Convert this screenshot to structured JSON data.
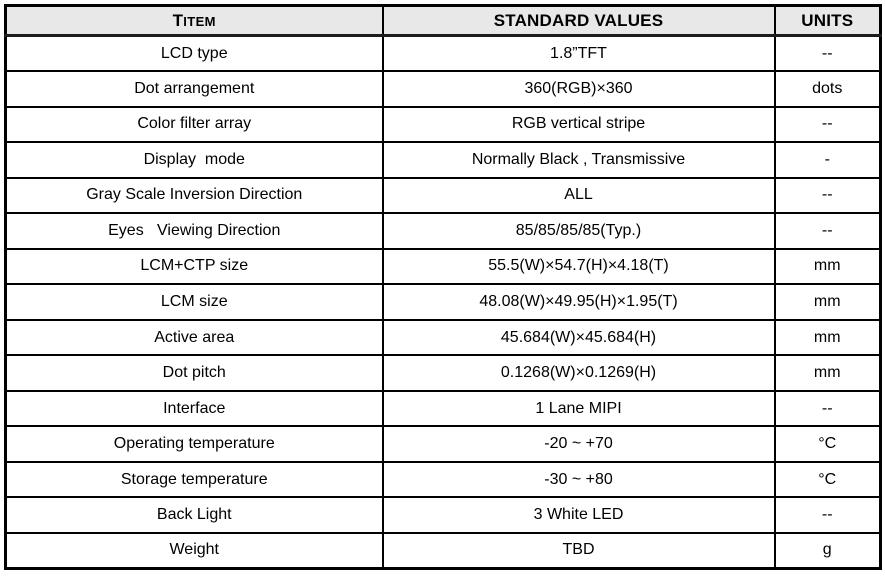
{
  "table": {
    "header": {
      "item_initial": "T",
      "item_rest": "ITEM",
      "standard_values": "STANDARD VALUES",
      "units": "UNITS"
    },
    "rows": [
      {
        "item": "LCD type",
        "value": "1.8”TFT",
        "unit": "--"
      },
      {
        "item": "Dot arrangement",
        "value": "360(RGB)×360",
        "unit": "dots"
      },
      {
        "item": "Color filter array",
        "value": "RGB vertical stripe",
        "unit": "--"
      },
      {
        "item": "Display  mode",
        "value": "Normally Black , Transmissive",
        "unit": "-"
      },
      {
        "item": "Gray Scale Inversion Direction",
        "value": "ALL",
        "unit": "--"
      },
      {
        "item": "Eyes   Viewing Direction",
        "value": "85/85/85/85(Typ.)",
        "unit": "--"
      },
      {
        "item": "LCM+CTP size",
        "value": "55.5(W)×54.7(H)×4.18(T)",
        "unit": "mm"
      },
      {
        "item": "LCM size",
        "value": "48.08(W)×49.95(H)×1.95(T)",
        "unit": "mm"
      },
      {
        "item": "Active area",
        "value": "45.684(W)×45.684(H)",
        "unit": "mm"
      },
      {
        "item": "Dot pitch",
        "value": "0.1268(W)×0.1269(H)",
        "unit": "mm"
      },
      {
        "item": "Interface",
        "value": "1 Lane MIPI",
        "unit": "--"
      },
      {
        "item": "Operating temperature",
        "value": "-20 ~ +70",
        "unit": "°C"
      },
      {
        "item": "Storage temperature",
        "value": "-30 ~ +80",
        "unit": "°C"
      },
      {
        "item": "Back Light",
        "value": "3 White LED",
        "unit": "--"
      },
      {
        "item": "Weight",
        "value": "TBD",
        "unit": "g"
      }
    ]
  },
  "colors": {
    "header_bg": "#e8e8e8",
    "border": "#000000",
    "text": "#000000",
    "background": "#ffffff"
  }
}
